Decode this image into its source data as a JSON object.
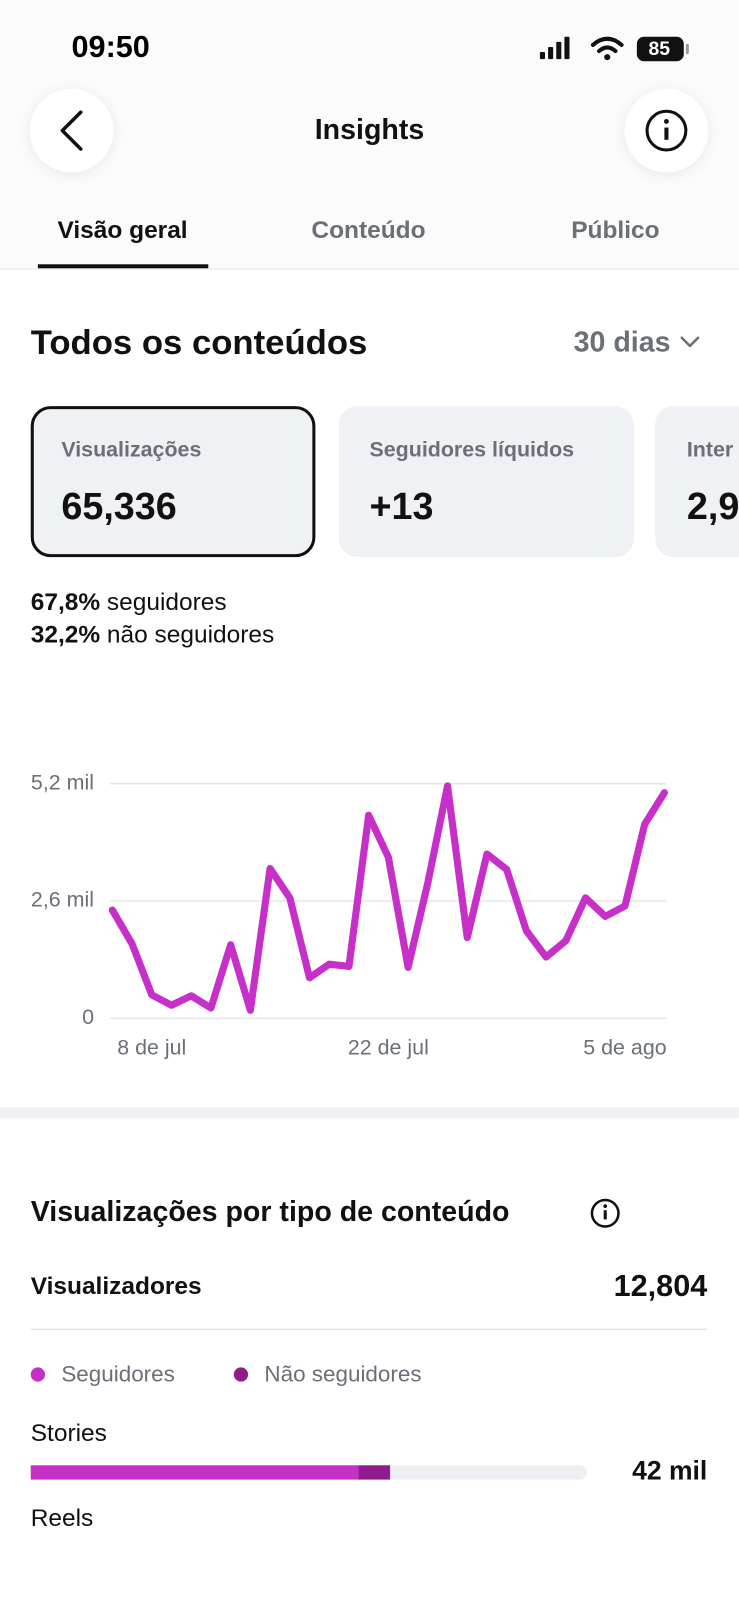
{
  "status_bar": {
    "time": "09:50",
    "battery": "85"
  },
  "header": {
    "title": "Insights"
  },
  "tabs": [
    "Visão geral",
    "Conteúdo",
    "Público"
  ],
  "section": {
    "title": "Todos os conteúdos",
    "period": "30 dias"
  },
  "cards": [
    {
      "label": "Visualizações",
      "value": "65,336"
    },
    {
      "label": "Seguidores líquidos",
      "value": "+13"
    },
    {
      "label": "Inter",
      "value": "2,9"
    }
  ],
  "breakdown": [
    {
      "value": "67,8%",
      "label": "seguidores"
    },
    {
      "value": "32,2%",
      "label": "não seguidores"
    }
  ],
  "viewers": {
    "label": "Visualizadores",
    "value": "12,804"
  },
  "chart_data": [
    {
      "type": "line",
      "categories": [
        null,
        null,
        "8 de jul",
        null,
        null,
        null,
        null,
        null,
        null,
        null,
        null,
        null,
        null,
        null,
        "22 de jul",
        null,
        null,
        null,
        null,
        null,
        null,
        null,
        null,
        null,
        null,
        null,
        "5 de ago",
        null,
        null
      ],
      "series": [
        {
          "color": "#c62fc8",
          "values": [
            2400,
            1650,
            520,
            290,
            500,
            230,
            1630,
            180,
            3320,
            2670,
            900,
            1200,
            1150,
            4500,
            3570,
            1130,
            3000,
            5150,
            1790,
            3640,
            3300,
            1940,
            1360,
            1720,
            2670,
            2260,
            2490,
            4300,
            5000
          ]
        }
      ],
      "ylim": [
        0,
        5200
      ],
      "yticks": [
        0,
        {
          "value": 2600,
          "label": "2,6 mil"
        },
        {
          "value": 5200,
          "label": "5,2 mil"
        }
      ],
      "grid": true
    },
    {
      "type": "bar",
      "title": "Visualizações por tipo de conteúdo",
      "orientation": "horizontal",
      "categories": [
        "Stories",
        "Reels"
      ],
      "series": [
        {
          "name": "Seguidores",
          "color": "#c62fc8",
          "values": [
            38300,
            null
          ]
        },
        {
          "name": "Não seguidores",
          "color": "#8e1c8e",
          "values": [
            3700,
            null
          ]
        }
      ],
      "value_labels": [
        "42 mil",
        null
      ],
      "xlim": [
        0,
        65000
      ]
    }
  ]
}
